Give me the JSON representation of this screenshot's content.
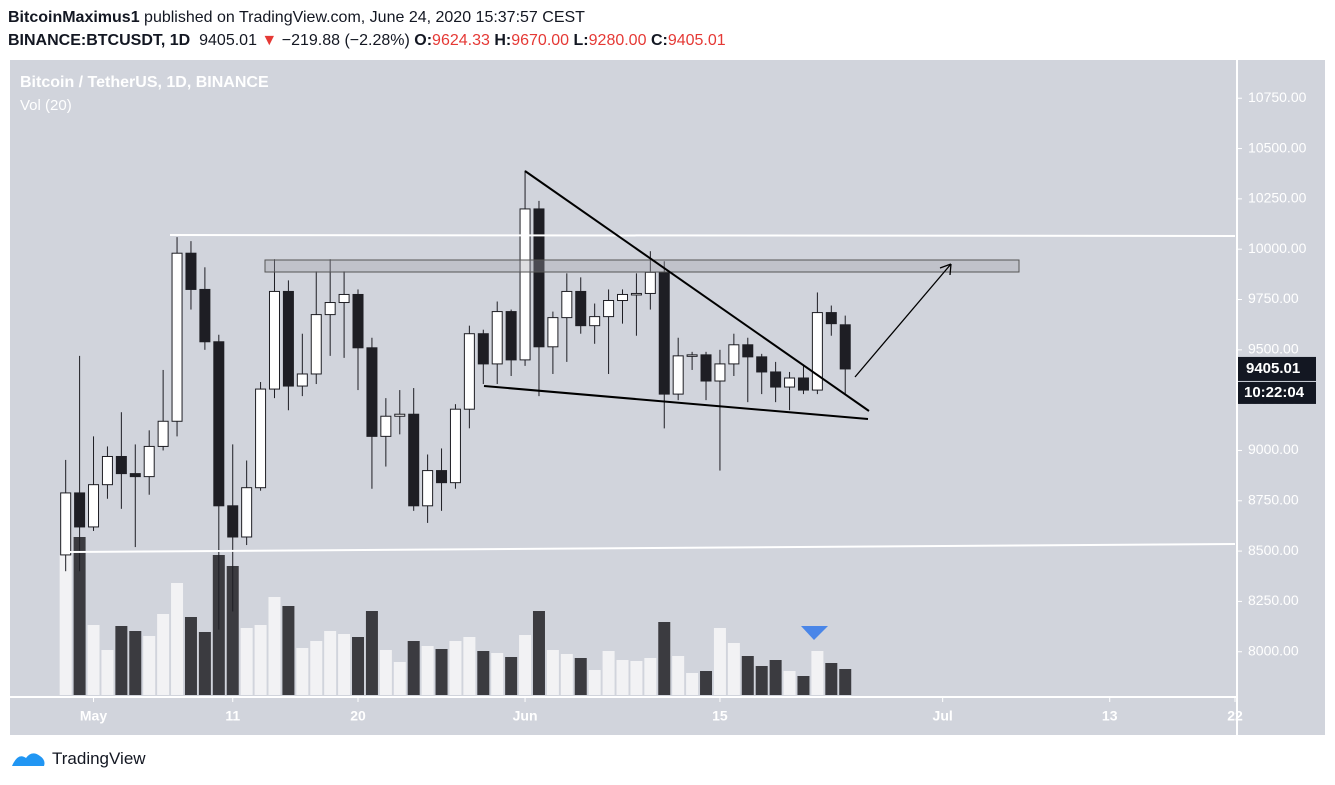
{
  "header": {
    "author": "BitcoinMaximus1",
    "published": "published on TradingView.com, June 24, 2020 15:37:57 CEST",
    "symbol": "BINANCE:BTCUSDT, 1D",
    "last": "9405.01",
    "arrow": "▼",
    "change": "−219.88 (−2.28%)",
    "o_label": "O:",
    "o": "9624.33",
    "h_label": "H:",
    "h": "9670.00",
    "l_label": "L:",
    "l": "9280.00",
    "c_label": "C:",
    "c": "9405.01"
  },
  "chart_data": {
    "type": "candlestick",
    "title": "Bitcoin / TetherUS, 1D, BINANCE",
    "subtitle": "Vol (20)",
    "x": [
      "2020-04-29",
      "2020-04-30",
      "2020-05-01",
      "2020-05-02",
      "2020-05-03",
      "2020-05-04",
      "2020-05-05",
      "2020-05-06",
      "2020-05-07",
      "2020-05-08",
      "2020-05-09",
      "2020-05-10",
      "2020-05-11",
      "2020-05-12",
      "2020-05-13",
      "2020-05-14",
      "2020-05-15",
      "2020-05-16",
      "2020-05-17",
      "2020-05-18",
      "2020-05-19",
      "2020-05-20",
      "2020-05-21",
      "2020-05-22",
      "2020-05-23",
      "2020-05-24",
      "2020-05-25",
      "2020-05-26",
      "2020-05-27",
      "2020-05-28",
      "2020-05-29",
      "2020-05-30",
      "2020-05-31",
      "2020-06-01",
      "2020-06-02",
      "2020-06-03",
      "2020-06-04",
      "2020-06-05",
      "2020-06-06",
      "2020-06-07",
      "2020-06-08",
      "2020-06-09",
      "2020-06-10",
      "2020-06-11",
      "2020-06-12",
      "2020-06-13",
      "2020-06-14",
      "2020-06-15",
      "2020-06-16",
      "2020-06-17",
      "2020-06-18",
      "2020-06-19",
      "2020-06-20",
      "2020-06-21",
      "2020-06-22",
      "2020-06-23",
      "2020-06-24"
    ],
    "open": [
      8481,
      8789,
      8620,
      8830,
      8970,
      8885,
      8870,
      9020,
      9145,
      9980,
      9800,
      9540,
      8725,
      8570,
      8815,
      9305,
      9790,
      9320,
      9380,
      9675,
      9735,
      9775,
      9510,
      9070,
      9170,
      9180,
      8725,
      8900,
      8840,
      9205,
      9580,
      9430,
      9690,
      9450,
      10200,
      9515,
      9660,
      9790,
      9620,
      9665,
      9745,
      9775,
      9780,
      9885,
      9280,
      9470,
      9475,
      9345,
      9430,
      9525,
      9465,
      9390,
      9315,
      9360,
      9300,
      9685,
      9624.33
    ],
    "high": [
      8953,
      9470,
      9070,
      9020,
      9190,
      9030,
      9100,
      9400,
      10060,
      10040,
      9910,
      9575,
      9030,
      8950,
      9340,
      9950,
      9845,
      9580,
      9890,
      9950,
      9890,
      9800,
      9560,
      9260,
      9300,
      9310,
      8980,
      9010,
      9230,
      9620,
      9600,
      9740,
      9700,
      10390,
      10240,
      9690,
      9880,
      9860,
      9730,
      9800,
      9800,
      9880,
      9990,
      9940,
      9560,
      9490,
      9490,
      9500,
      9580,
      9560,
      9480,
      9440,
      9390,
      9420,
      9785,
      9720,
      9670
    ],
    "low": [
      8400,
      8400,
      8600,
      8760,
      8710,
      8520,
      8780,
      9000,
      9070,
      9700,
      9500,
      8110,
      8200,
      8530,
      8800,
      9260,
      9200,
      9270,
      9330,
      9470,
      9460,
      9300,
      8810,
      8920,
      9080,
      8700,
      8640,
      8700,
      8810,
      9110,
      9330,
      9330,
      9370,
      9420,
      9270,
      9380,
      9440,
      9580,
      9530,
      9380,
      9630,
      9570,
      9700,
      9110,
      9250,
      9400,
      9250,
      8900,
      9370,
      9240,
      9280,
      9240,
      9200,
      9280,
      9280,
      9570,
      9280
    ],
    "close": [
      8789,
      8620,
      8830,
      8970,
      8885,
      8870,
      9020,
      9145,
      9980,
      9800,
      9540,
      8725,
      8570,
      8815,
      9305,
      9790,
      9320,
      9380,
      9675,
      9735,
      9775,
      9510,
      9070,
      9170,
      9180,
      8725,
      8900,
      8840,
      9205,
      9580,
      9430,
      9690,
      9450,
      10200,
      9515,
      9660,
      9790,
      9620,
      9665,
      9745,
      9775,
      9780,
      9885,
      9280,
      9470,
      9475,
      9345,
      9430,
      9525,
      9465,
      9390,
      9315,
      9360,
      9300,
      9685,
      9630,
      9405.01
    ],
    "volume": [
      140,
      158,
      70,
      45,
      69,
      64,
      59,
      81,
      112,
      78,
      63,
      140,
      129,
      67,
      70,
      98,
      89,
      47,
      54,
      64,
      61,
      58,
      84,
      45,
      33,
      54,
      49,
      46,
      54,
      58,
      44,
      42,
      38,
      60,
      84,
      45,
      41,
      37,
      25,
      44,
      35,
      34,
      37,
      73,
      39,
      22,
      24,
      67,
      52,
      39,
      29,
      35,
      24,
      19,
      44,
      32,
      26
    ],
    "up_color": "#ffffff",
    "down_color": "#1e1e24",
    "vol_up_color": "#f2f2f4",
    "vol_down_color": "#3b3b40",
    "countdown": "10:22:04",
    "xlim": [
      "2020-04-25",
      "2020-07-22"
    ],
    "xticks": [
      {
        "value": "2020-05-01",
        "label": "May"
      },
      {
        "value": "2020-05-11",
        "label": "11"
      },
      {
        "value": "2020-05-20",
        "label": "20"
      },
      {
        "value": "2020-06-01",
        "label": "Jun"
      },
      {
        "value": "2020-06-15",
        "label": "15"
      },
      {
        "value": "2020-07-01",
        "label": "Jul"
      },
      {
        "value": "2020-07-13",
        "label": "13"
      },
      {
        "value": "2020-07-22",
        "label": "22"
      }
    ],
    "ylim": [
      7785,
      10930
    ],
    "yticks": [
      {
        "value": 8000,
        "label": "8000.00"
      },
      {
        "value": 8250,
        "label": "8250.00"
      },
      {
        "value": 8500,
        "label": "8500.00"
      },
      {
        "value": 8750,
        "label": "8750.00"
      },
      {
        "value": 9000,
        "label": "9000.00"
      },
      {
        "value": 9250,
        "label": "9250.00"
      },
      {
        "value": 9500,
        "label": "9500.00"
      },
      {
        "value": 9750,
        "label": "9750.00"
      },
      {
        "value": 10000,
        "label": "10000.00"
      },
      {
        "value": 10250,
        "label": "10250.00"
      },
      {
        "value": 10500,
        "label": "10500.00"
      },
      {
        "value": 10750,
        "label": "10750.00"
      }
    ],
    "grid": false
  }
}
